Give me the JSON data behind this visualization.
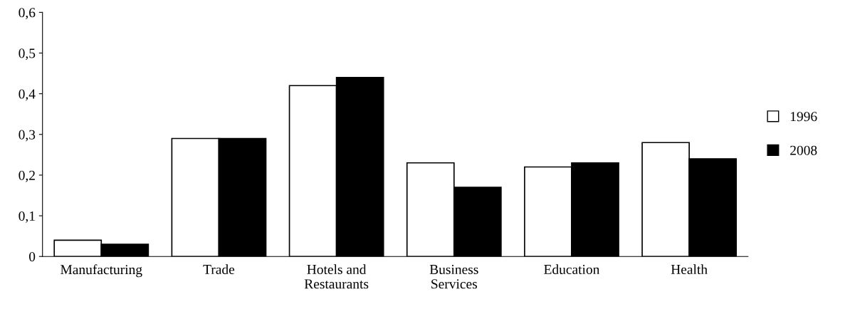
{
  "chart_data": {
    "type": "bar",
    "categories": [
      "Manufacturing",
      "Trade",
      "Hotels and Restaurants",
      "Business Services",
      "Education",
      "Health"
    ],
    "series": [
      {
        "name": "1996",
        "color": "#ffffff",
        "values": [
          0.04,
          0.29,
          0.42,
          0.23,
          0.22,
          0.28
        ]
      },
      {
        "name": "2008",
        "color": "#000000",
        "values": [
          0.03,
          0.29,
          0.44,
          0.17,
          0.23,
          0.24
        ]
      }
    ],
    "ylim": [
      0,
      0.6
    ],
    "yticks": [
      0,
      {
        "value": 0.1,
        "label": "0,1"
      },
      {
        "value": 0.2,
        "label": "0,2"
      },
      {
        "value": 0.3,
        "label": "0,3"
      },
      {
        "value": 0.4,
        "label": "0,4"
      },
      {
        "value": 0.5,
        "label": "0,5"
      },
      {
        "value": 0.6,
        "label": "0,6"
      }
    ],
    "grid": false,
    "legend": "right"
  }
}
